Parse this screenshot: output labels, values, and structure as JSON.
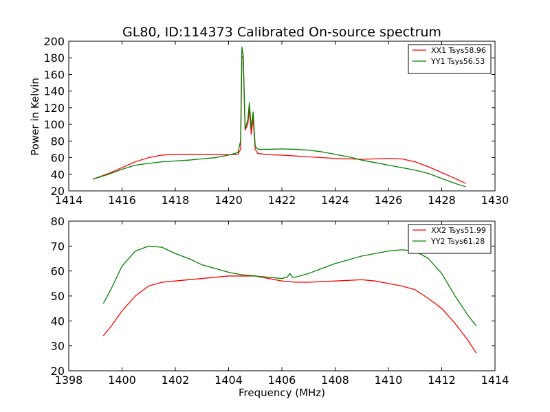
{
  "figure": {
    "title": "GL80, ID:114373 Calibrated On-source spectrum",
    "xlabel": "Frequency (MHz)",
    "ylabel": "Power in Kelvin"
  },
  "chart_data": [
    {
      "type": "line",
      "xlabel": "",
      "ylabel": "Power in Kelvin",
      "xlim": [
        1414,
        1430
      ],
      "ylim": [
        20,
        200
      ],
      "xticks": [
        1414,
        1416,
        1418,
        1420,
        1422,
        1424,
        1426,
        1428,
        1430
      ],
      "yticks": [
        20,
        40,
        60,
        80,
        100,
        120,
        140,
        160,
        180,
        200
      ],
      "grid": false,
      "legend": "top-right",
      "series": [
        {
          "name": "XX1 Tsys58.96",
          "color": "#ff0000",
          "points": [
            [
              1414.9,
              34
            ],
            [
              1415.5,
              41
            ],
            [
              1416.0,
              48
            ],
            [
              1416.5,
              55
            ],
            [
              1417.0,
              60
            ],
            [
              1417.5,
              63
            ],
            [
              1418.0,
              64
            ],
            [
              1418.5,
              64
            ],
            [
              1419.0,
              64
            ],
            [
              1419.5,
              63.5
            ],
            [
              1420.0,
              63.5
            ],
            [
              1420.35,
              64
            ],
            [
              1420.45,
              70
            ],
            [
              1420.5,
              182
            ],
            [
              1420.55,
              180
            ],
            [
              1420.62,
              93
            ],
            [
              1420.72,
              100
            ],
            [
              1420.78,
              118
            ],
            [
              1420.85,
              88
            ],
            [
              1420.92,
              108
            ],
            [
              1421.0,
              70
            ],
            [
              1421.1,
              65
            ],
            [
              1421.5,
              63.5
            ],
            [
              1422.0,
              63
            ],
            [
              1423.0,
              61
            ],
            [
              1424.0,
              59
            ],
            [
              1425.0,
              58
            ],
            [
              1426.0,
              59
            ],
            [
              1426.5,
              58.5
            ],
            [
              1427.0,
              55
            ],
            [
              1427.5,
              49
            ],
            [
              1428.0,
              42
            ],
            [
              1428.5,
              35
            ],
            [
              1428.9,
              29
            ]
          ]
        },
        {
          "name": "YY1 Tsys56.53",
          "color": "#008000",
          "points": [
            [
              1414.9,
              34
            ],
            [
              1415.5,
              40
            ],
            [
              1416.0,
              46
            ],
            [
              1416.5,
              51
            ],
            [
              1417.0,
              53
            ],
            [
              1417.5,
              55
            ],
            [
              1418.0,
              56
            ],
            [
              1418.5,
              57
            ],
            [
              1419.0,
              58.5
            ],
            [
              1419.5,
              60
            ],
            [
              1420.0,
              63
            ],
            [
              1420.35,
              66
            ],
            [
              1420.45,
              80
            ],
            [
              1420.5,
              193
            ],
            [
              1420.55,
              183
            ],
            [
              1420.62,
              95
            ],
            [
              1420.72,
              105
            ],
            [
              1420.78,
              126
            ],
            [
              1420.85,
              95
            ],
            [
              1420.92,
              115
            ],
            [
              1421.0,
              74
            ],
            [
              1421.1,
              70
            ],
            [
              1421.5,
              70
            ],
            [
              1422.0,
              70.5
            ],
            [
              1422.5,
              70
            ],
            [
              1423.0,
              69
            ],
            [
              1423.5,
              67
            ],
            [
              1424.0,
              64
            ],
            [
              1424.5,
              61
            ],
            [
              1425.0,
              57
            ],
            [
              1425.5,
              54
            ],
            [
              1426.0,
              51
            ],
            [
              1426.5,
              48
            ],
            [
              1427.0,
              45
            ],
            [
              1427.5,
              41
            ],
            [
              1428.0,
              35
            ],
            [
              1428.5,
              29
            ],
            [
              1428.9,
              25
            ]
          ]
        }
      ]
    },
    {
      "type": "line",
      "xlabel": "Frequency (MHz)",
      "ylabel": "",
      "xlim": [
        1398,
        1414
      ],
      "ylim": [
        20,
        80
      ],
      "xticks": [
        1398,
        1400,
        1402,
        1404,
        1406,
        1408,
        1410,
        1412,
        1414
      ],
      "yticks": [
        20,
        30,
        40,
        50,
        60,
        70,
        80
      ],
      "grid": false,
      "legend": "top-right",
      "series": [
        {
          "name": "XX2 Tsys51.99",
          "color": "#ff0000",
          "points": [
            [
              1399.3,
              34
            ],
            [
              1399.6,
              38
            ],
            [
              1400.0,
              44
            ],
            [
              1400.5,
              50
            ],
            [
              1401.0,
              54
            ],
            [
              1401.5,
              55.5
            ],
            [
              1402.0,
              56
            ],
            [
              1403.0,
              57
            ],
            [
              1404.0,
              58
            ],
            [
              1405.0,
              58
            ],
            [
              1405.5,
              57
            ],
            [
              1406.0,
              56
            ],
            [
              1406.5,
              55.5
            ],
            [
              1407.0,
              55.5
            ],
            [
              1408.0,
              56
            ],
            [
              1409.0,
              56.5
            ],
            [
              1409.5,
              56
            ],
            [
              1410.0,
              55
            ],
            [
              1410.5,
              54
            ],
            [
              1411.0,
              52.5
            ],
            [
              1411.5,
              49
            ],
            [
              1412.0,
              45
            ],
            [
              1412.5,
              39
            ],
            [
              1413.0,
              32
            ],
            [
              1413.3,
              27
            ]
          ]
        },
        {
          "name": "YY2 Tsys61.28",
          "color": "#008000",
          "points": [
            [
              1399.3,
              47
            ],
            [
              1399.6,
              53
            ],
            [
              1400.0,
              62
            ],
            [
              1400.5,
              68
            ],
            [
              1401.0,
              70
            ],
            [
              1401.5,
              69.5
            ],
            [
              1402.0,
              67
            ],
            [
              1402.5,
              65
            ],
            [
              1403.0,
              62.5
            ],
            [
              1403.5,
              61
            ],
            [
              1404.0,
              59.5
            ],
            [
              1404.5,
              58.5
            ],
            [
              1405.0,
              58
            ],
            [
              1405.5,
              57.5
            ],
            [
              1406.0,
              57
            ],
            [
              1406.2,
              57.5
            ],
            [
              1406.3,
              59
            ],
            [
              1406.4,
              57.5
            ],
            [
              1406.5,
              57.5
            ],
            [
              1407.0,
              59
            ],
            [
              1407.5,
              61
            ],
            [
              1408.0,
              63
            ],
            [
              1408.5,
              64.5
            ],
            [
              1409.0,
              66
            ],
            [
              1409.5,
              67
            ],
            [
              1410.0,
              68
            ],
            [
              1410.5,
              68.5
            ],
            [
              1411.0,
              68
            ],
            [
              1411.5,
              65
            ],
            [
              1412.0,
              59
            ],
            [
              1412.5,
              50
            ],
            [
              1413.0,
              42
            ],
            [
              1413.3,
              38
            ]
          ]
        }
      ]
    }
  ]
}
